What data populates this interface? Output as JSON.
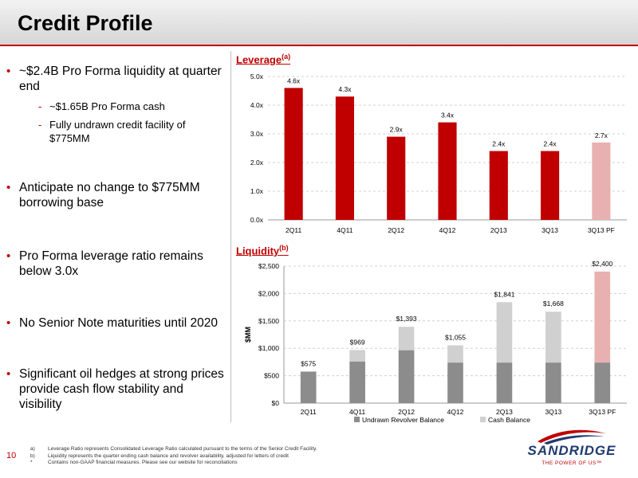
{
  "header": {
    "title": "Credit Profile"
  },
  "left": {
    "bullets": [
      "~$2.4B Pro Forma liquidity at quarter end",
      "Anticipate no change to $775MM borrowing base",
      "Pro Forma leverage ratio remains below 3.0x",
      "No Senior Note maturities until 2020",
      "Significant oil hedges at strong prices provide cash flow stability and visibility"
    ],
    "subs": [
      "~$1.65B Pro Forma cash",
      "Fully undrawn credit facility of $775MM"
    ]
  },
  "chart_titles": {
    "leverage": "Leverage",
    "leverage_sup": "(a)",
    "liquidity": "Liquidity",
    "liquidity_sup": "(b)"
  },
  "chart_data": [
    {
      "type": "bar",
      "title": "Leverage(a)",
      "categories": [
        "2Q11",
        "4Q11",
        "2Q12",
        "4Q12",
        "2Q13",
        "3Q13",
        "3Q13 PF"
      ],
      "values": [
        4.6,
        4.3,
        2.9,
        3.4,
        2.4,
        2.4,
        2.7
      ],
      "data_labels": [
        "4.6x",
        "4.3x",
        "2.9x",
        "3.4x",
        "2.4x",
        "2.4x",
        "2.7x"
      ],
      "ylim": [
        0,
        5
      ],
      "yticks": [
        "0.0x",
        "1.0x",
        "2.0x",
        "3.0x",
        "4.0x",
        "5.0x"
      ],
      "grid": true,
      "colors": {
        "main": "#c00000",
        "pro_forma": "#e8b0b0"
      }
    },
    {
      "type": "bar",
      "stacked": true,
      "title": "Liquidity(b)",
      "ylabel": "$MM",
      "categories": [
        "2Q11",
        "4Q11",
        "2Q12",
        "4Q12",
        "2Q13",
        "3Q13",
        "3Q13 PF"
      ],
      "series": [
        {
          "name": "Undrawn Revolver Balance",
          "values": [
            575,
            760,
            965,
            740,
            740,
            740,
            740
          ]
        },
        {
          "name": "Cash Balance",
          "values": [
            0,
            209,
            428,
            315,
            1101,
            928,
            1660
          ]
        }
      ],
      "totals": [
        575,
        969,
        1393,
        1055,
        1841,
        1668,
        2400
      ],
      "total_labels": [
        "$575",
        "$969",
        "$1,393",
        "$1,055",
        "$1,841",
        "$1,668",
        "$2,400"
      ],
      "ylim": [
        0,
        2500
      ],
      "yticks": [
        "$0",
        "$500",
        "$1,000",
        "$1,500",
        "$2,000",
        "$2,500"
      ],
      "legend": "bottom",
      "grid": true,
      "colors": {
        "revolver": "#8c8c8c",
        "cash": "#d0d0d0",
        "pro_forma_cash": "#e8b0b0"
      }
    }
  ],
  "footnotes": [
    {
      "key": "a)",
      "text": "Leverage Ratio represents Consolidated Leverage Ratio calculated pursuant to the terms of the Senior Credit Facility."
    },
    {
      "key": "b)",
      "text": "Liquidity represents the quarter ending cash balance and revolver availability, adjusted for letters of credit"
    },
    {
      "key": "*",
      "text": "Contains non-GAAP financial measures. Please see our website for reconciliations"
    }
  ],
  "page_number": "10",
  "logo": {
    "word": "SANDRIDGE",
    "tagline": "THE POWER OF US™"
  }
}
